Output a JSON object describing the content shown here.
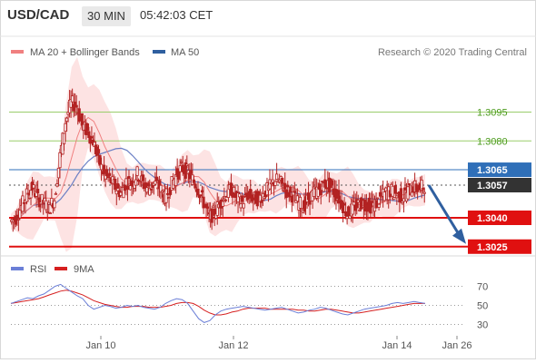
{
  "header": {
    "symbol": "USD/CAD",
    "timeframe": "30 MIN",
    "time": "05:42:03 CET"
  },
  "legend": {
    "ma20_label": "MA 20 + Bollinger Bands",
    "ma50_label": "MA 50",
    "copyright": "Research © 2020 Trading Central",
    "rsi_label": "RSI",
    "rsi_ma_label": "9MA"
  },
  "colors": {
    "candle": "#b22222",
    "ma20": "#f08080",
    "band_fill": "#fde0e0",
    "ma50": "#6b7fc4",
    "resistance_green": "#9acd6b",
    "pivot_blue": "#2f6fb8",
    "support_red": "#e01010",
    "price_label": "#333333",
    "arrow": "#2f5f9f",
    "rsi": "#6b7fd7",
    "rsi_ma": "#d62020"
  },
  "chart_data": [
    {
      "type": "candlestick",
      "x_ticks": [
        "Jan 10",
        "Jan 12",
        "Jan 14",
        "Jan 26"
      ],
      "levels": [
        {
          "value": 1.3095,
          "label": "1.3095",
          "kind": "resistance"
        },
        {
          "value": 1.308,
          "label": "1.3080",
          "kind": "resistance"
        },
        {
          "value": 1.3065,
          "label": "1.3065",
          "kind": "pivot"
        },
        {
          "value": 1.3057,
          "label": "1.3057",
          "kind": "last"
        },
        {
          "value": 1.304,
          "label": "1.3040",
          "kind": "support"
        },
        {
          "value": 1.3025,
          "label": "1.3025",
          "kind": "support"
        }
      ],
      "ylim": [
        1.3023,
        1.3125
      ],
      "close_path": [
        1.3038,
        1.304,
        1.3046,
        1.3052,
        1.3056,
        1.305,
        1.3048,
        1.3045,
        1.305,
        1.3072,
        1.309,
        1.31,
        1.3098,
        1.3088,
        1.3085,
        1.308,
        1.307,
        1.3062,
        1.306,
        1.3056,
        1.3053,
        1.3059,
        1.3058,
        1.3063,
        1.3058,
        1.3055,
        1.3058,
        1.3056,
        1.305,
        1.3056,
        1.3062,
        1.3066,
        1.3064,
        1.306,
        1.3055,
        1.3048,
        1.304,
        1.3043,
        1.3048,
        1.3052,
        1.3055,
        1.305,
        1.3048,
        1.3052,
        1.305,
        1.305,
        1.3053,
        1.3056,
        1.306,
        1.3058,
        1.3054,
        1.3052,
        1.3048,
        1.3046,
        1.305,
        1.3053,
        1.3055,
        1.3058,
        1.3056,
        1.3052,
        1.3048,
        1.3042,
        1.3045,
        1.3047,
        1.3048,
        1.3046,
        1.3047,
        1.305,
        1.3053,
        1.3054,
        1.3052,
        1.3051,
        1.3054,
        1.3056,
        1.3055,
        1.3057
      ]
    },
    {
      "type": "line",
      "name": "RSI",
      "y_ticks": [
        70,
        50,
        30
      ],
      "ylim": [
        20,
        80
      ],
      "rsi": [
        52,
        54,
        56,
        58,
        57,
        60,
        62,
        66,
        70,
        72,
        68,
        64,
        60,
        57,
        50,
        46,
        48,
        50,
        49,
        47,
        48,
        50,
        49,
        50,
        48,
        47,
        46,
        48,
        52,
        55,
        57,
        56,
        52,
        44,
        36,
        32,
        34,
        40,
        44,
        46,
        47,
        48,
        49,
        48,
        47,
        46,
        45,
        46,
        47,
        48,
        46,
        44,
        42,
        43,
        45,
        46,
        48,
        47,
        45,
        43,
        41,
        40,
        42,
        44,
        46,
        47,
        48,
        49,
        50,
        52,
        53,
        52,
        53,
        54,
        53,
        52
      ],
      "rsi_ma": [
        52,
        53,
        54,
        55,
        56,
        57,
        59,
        61,
        63,
        65,
        66,
        65,
        63,
        61,
        58,
        55,
        53,
        51,
        50,
        49,
        48,
        48,
        49,
        49,
        49,
        48,
        48,
        48,
        49,
        50,
        52,
        53,
        53,
        52,
        49,
        45,
        42,
        40,
        40,
        41,
        43,
        44,
        46,
        47,
        47,
        47,
        47,
        46,
        46,
        46,
        46,
        46,
        45,
        45,
        44,
        44,
        45,
        46,
        46,
        45,
        44,
        43,
        42,
        42,
        43,
        44,
        45,
        46,
        47,
        48,
        49,
        50,
        51,
        52,
        52,
        52
      ]
    }
  ]
}
